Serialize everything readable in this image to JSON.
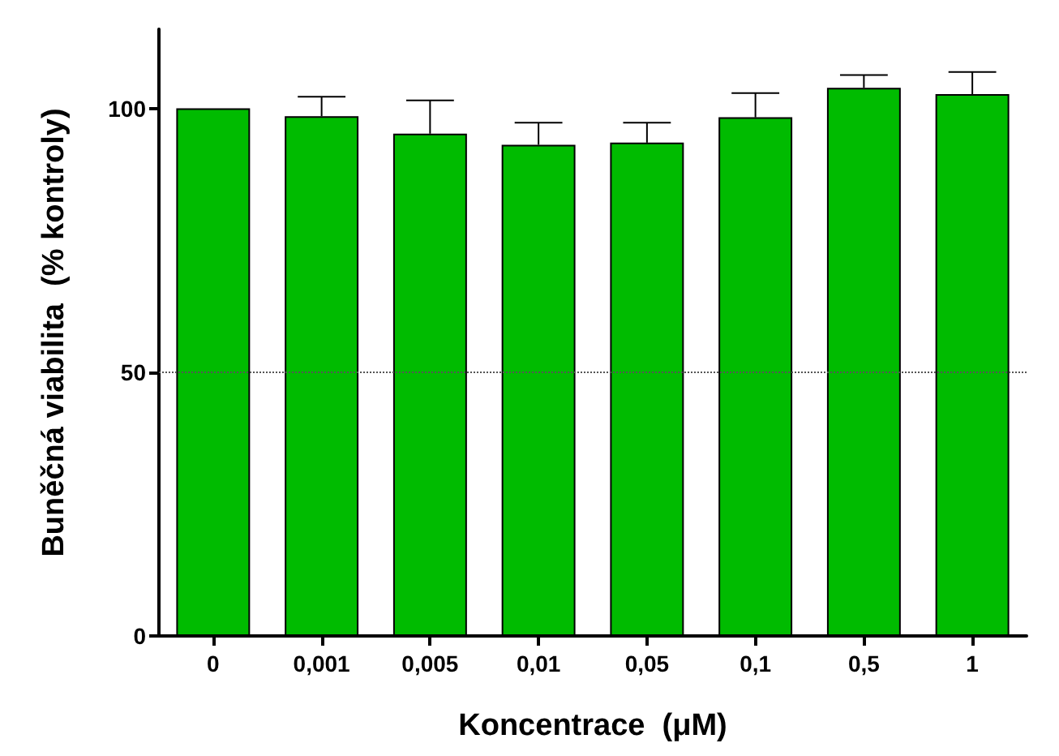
{
  "chart_data": {
    "type": "bar",
    "xlabel": "Koncentrace  (μM)",
    "ylabel": "Buněčná viabilita  (% kontroly)",
    "categories": [
      "0",
      "0,001",
      "0,005",
      "0,01",
      "0,05",
      "0,1",
      "0,5",
      "1"
    ],
    "values": [
      100,
      98.5,
      95.2,
      93.1,
      93.5,
      98.3,
      103.9,
      102.7
    ],
    "errors": [
      null,
      [
        98.5,
        102.2
      ],
      [
        95.2,
        101.5
      ],
      [
        93.1,
        97.3
      ],
      [
        93.5,
        97.3
      ],
      [
        98.3,
        102.9
      ],
      [
        103.9,
        106.3
      ],
      [
        102.7,
        106.9
      ]
    ],
    "color": "#00bb00",
    "ylim": [
      0,
      115
    ],
    "yticks": [
      0,
      50,
      100
    ],
    "grid": false,
    "ref_lines": [
      {
        "axis": "y",
        "value": 50,
        "line_style": "dotted",
        "color": "#555555"
      }
    ]
  }
}
